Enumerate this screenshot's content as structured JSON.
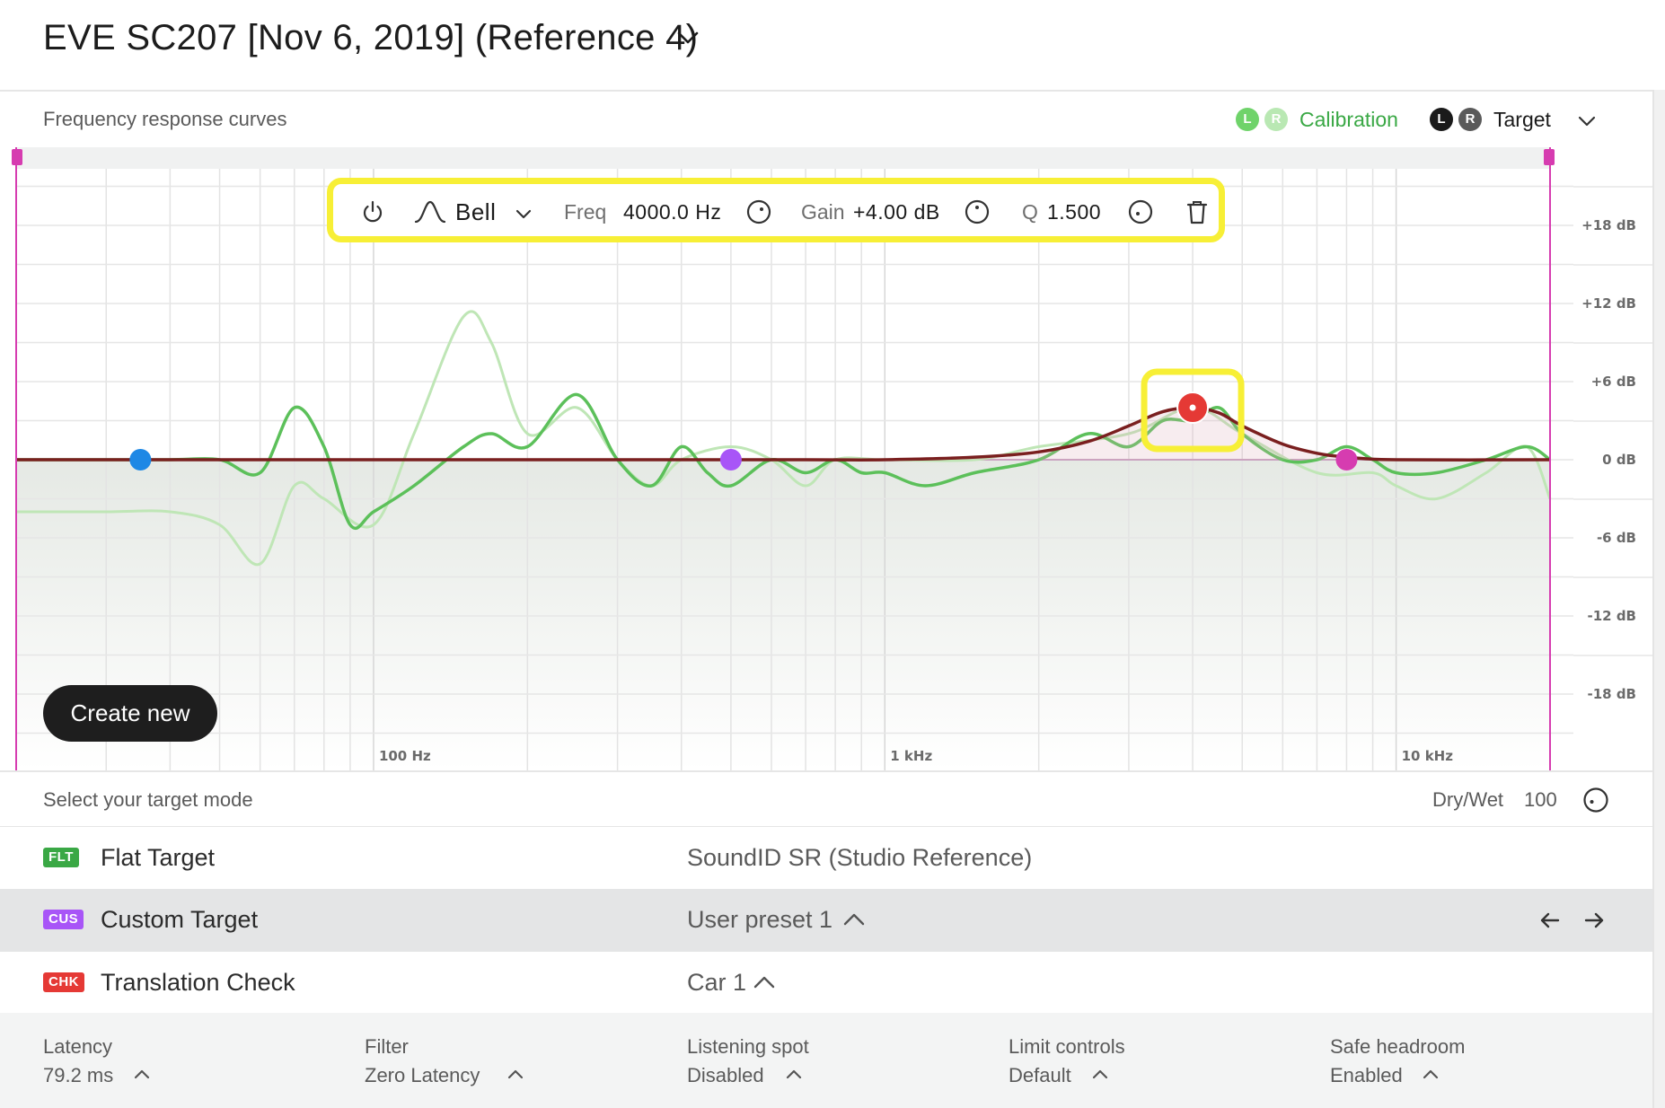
{
  "header": {
    "title": "EVE SC207 [Nov 6, 2019] (Reference 4)",
    "dropdown_icon": "chevron-down-icon"
  },
  "curves": {
    "section_label": "Frequency response curves",
    "legend": {
      "calibration": {
        "badges": [
          "L",
          "R"
        ],
        "label": "Calibration",
        "color": "#3aa845"
      },
      "target": {
        "badges": [
          "L",
          "R"
        ],
        "label": "Target",
        "color": "#1a1a1a"
      },
      "dropdown_icon": "chevron-down-icon"
    }
  },
  "eq_toolbar": {
    "power_icon": "power-icon",
    "filter_type": "Bell",
    "freq_label": "Freq",
    "freq_value": "4000.0 Hz",
    "gain_label": "Gain",
    "gain_value": "+4.00 dB",
    "q_label": "Q",
    "q_value": "1.500",
    "delete_icon": "trash-icon",
    "highlight_color": "#f7ef36"
  },
  "chart_data": {
    "type": "line",
    "x_scale": "log",
    "x_range_hz": [
      20,
      20000
    ],
    "y_range_db": [
      -18,
      18
    ],
    "x_tick_labels": [
      "100 Hz",
      "1 kHz",
      "10 kHz"
    ],
    "y_tick_labels": [
      "+18 dB",
      "+12 dB",
      "+6 dB",
      "0 dB",
      "-6 dB",
      "-12 dB",
      "-18 dB"
    ],
    "series": [
      {
        "key": "calibration-light",
        "color": "#bfe6b6",
        "x": [
          20,
          30,
          40,
          50,
          60,
          70,
          80,
          100,
          120,
          150,
          170,
          200,
          250,
          300,
          350,
          400,
          500,
          600,
          700,
          800,
          1000,
          1500,
          2000,
          3000,
          4000,
          5000,
          7000,
          9000,
          10000,
          12000,
          15000,
          18000,
          20000
        ],
        "y": [
          -4,
          -4,
          -4,
          -5,
          -8,
          -2,
          -3,
          -5,
          2,
          11,
          9,
          2,
          4,
          0,
          -2,
          0,
          1,
          0,
          -2,
          0,
          0,
          0,
          1,
          2,
          4,
          2,
          -1,
          -1,
          -2,
          -3,
          -1,
          1,
          -3
        ]
      },
      {
        "key": "calibration",
        "color": "#5cc05a",
        "x": [
          20,
          30,
          40,
          50,
          60,
          70,
          80,
          90,
          100,
          120,
          150,
          170,
          200,
          250,
          300,
          350,
          400,
          450,
          500,
          600,
          700,
          800,
          900,
          1000,
          1200,
          1500,
          2000,
          2500,
          3000,
          3500,
          4000,
          4500,
          5000,
          6000,
          7000,
          8000,
          9000,
          10000,
          12000,
          15000,
          18000,
          20000
        ],
        "y": [
          0,
          0,
          0,
          0,
          -1,
          4,
          1,
          -5,
          -4,
          -2,
          1,
          2,
          1,
          5,
          0,
          -2,
          1,
          -1,
          -2,
          0,
          -1,
          0,
          -1,
          -1,
          -2,
          -1,
          0,
          2,
          1,
          3,
          3,
          4,
          2,
          0,
          0,
          1,
          0,
          -1,
          -1,
          0,
          1,
          0
        ]
      },
      {
        "key": "target",
        "color": "#7a1f1f",
        "x": [
          20,
          100,
          300,
          700,
          1000,
          1500,
          2000,
          2500,
          3000,
          3500,
          4000,
          4500,
          5000,
          6000,
          7000,
          8000,
          10000,
          20000
        ],
        "y": [
          0,
          0,
          0,
          0,
          0,
          0.2,
          0.6,
          1.4,
          2.6,
          3.7,
          4,
          3.6,
          2.6,
          1.2,
          0.5,
          0.2,
          0,
          0
        ]
      }
    ],
    "eq_nodes": [
      {
        "freq_hz": 35,
        "gain_db": 0,
        "color": "#1e88e5"
      },
      {
        "freq_hz": 500,
        "gain_db": 0,
        "color": "#a855f7"
      },
      {
        "freq_hz": 4000,
        "gain_db": 4,
        "color": "#e53935",
        "selected": true
      },
      {
        "freq_hz": 8000,
        "gain_db": 0,
        "color": "#d63cb0"
      }
    ],
    "range_handle_color": "#d63cb0"
  },
  "create_button": "Create new",
  "target_mode": {
    "label": "Select your target mode",
    "dry_wet_label": "Dry/Wet",
    "dry_wet_value": "100",
    "rows": [
      {
        "tag": "FLT",
        "tag_color": "#3aa845",
        "name": "Flat Target",
        "value": "SoundID SR (Studio Reference)"
      },
      {
        "tag": "CUS",
        "tag_color": "#a855f7",
        "name": "Custom Target",
        "value": "User preset 1",
        "selected": true
      },
      {
        "tag": "CHK",
        "tag_color": "#e53935",
        "name": "Translation Check",
        "value": "Car 1"
      }
    ]
  },
  "footer": [
    {
      "label": "Latency",
      "value": "79.2 ms"
    },
    {
      "label": "Filter",
      "value": "Zero Latency"
    },
    {
      "label": "Listening spot",
      "value": "Disabled"
    },
    {
      "label": "Limit controls",
      "value": "Default"
    },
    {
      "label": "Safe headroom",
      "value": "Enabled"
    }
  ]
}
